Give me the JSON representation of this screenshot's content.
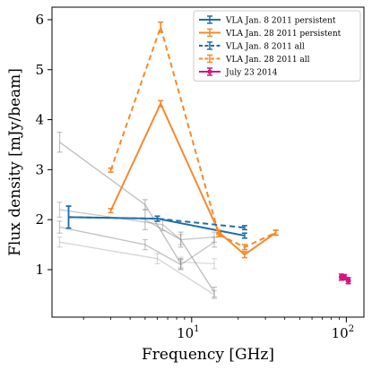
{
  "chart_data": {
    "type": "line",
    "xlabel": "Frequency [GHz]",
    "ylabel": "Flux density [mJy/beam]",
    "xscale": "log",
    "xlim": [
      1.25,
      130
    ],
    "ylim": [
      0.05,
      6.25
    ],
    "x_ticks": [
      {
        "value": 10,
        "base": "10",
        "exp": "1"
      },
      {
        "value": 100,
        "base": "10",
        "exp": "2"
      }
    ],
    "y_ticks": [
      1,
      2,
      3,
      4,
      5,
      6
    ],
    "grid": false,
    "legend": {
      "position": "top-right",
      "entries": [
        {
          "label": "VLA Jan. 8 2011 persistent",
          "color": "#1f6fa8",
          "dash": false
        },
        {
          "label": "VLA Jan. 28 2011 persistent",
          "color": "#f58a2c",
          "dash": false
        },
        {
          "label": "VLA Jan. 8 2011 all",
          "color": "#1f6fa8",
          "dash": true
        },
        {
          "label": "VLA Jan. 28 2011 all",
          "color": "#f58a2c",
          "dash": true
        },
        {
          "label": "July 23 2014",
          "color": "#d4157d",
          "dash": false,
          "marker": true
        }
      ]
    },
    "series": [
      {
        "name": "VLA Jan. 8 2011 persistent",
        "color": "#1f6fa8",
        "dash": false,
        "x": [
          1.6,
          6.0,
          22.0
        ],
        "y": [
          2.05,
          2.02,
          1.68
        ],
        "err": [
          0.22,
          0.05,
          0.05
        ]
      },
      {
        "name": "VLA Jan. 28 2011 persistent",
        "color": "#f58a2c",
        "dash": false,
        "x": [
          3.0,
          6.3,
          15.0,
          22.0,
          35.0
        ],
        "y": [
          2.18,
          4.32,
          1.75,
          1.3,
          1.74
        ],
        "err": [
          0.04,
          0.06,
          0.04,
          0.06,
          0.05
        ]
      },
      {
        "name": "VLA Jan. 8 2011 all",
        "color": "#1f6fa8",
        "dash": true,
        "x": [
          1.6,
          6.0,
          22.0
        ],
        "y": [
          2.05,
          2.02,
          1.84
        ],
        "err": [
          0.22,
          0.05,
          0.04
        ]
      },
      {
        "name": "VLA Jan. 28 2011 all",
        "color": "#f58a2c",
        "dash": true,
        "x": [
          3.0,
          6.3,
          15.0,
          22.0,
          35.0
        ],
        "y": [
          2.99,
          5.85,
          1.7,
          1.45,
          1.74
        ],
        "err": [
          0.04,
          0.1,
          0.04,
          0.05,
          0.05
        ]
      },
      {
        "name": "July 23 2014",
        "color": "#d4157d",
        "dash": false,
        "markers": true,
        "x": [
          93,
          97,
          103
        ],
        "y": [
          0.85,
          0.85,
          0.78
        ],
        "err": [
          0.06,
          0.05,
          0.06
        ]
      }
    ],
    "gray_series": [
      {
        "x": [
          1.4,
          5.0,
          8.5
        ],
        "y": [
          3.55,
          2.3,
          1.12
        ],
        "err": [
          0.2,
          0.1,
          0.1
        ],
        "opacity": 0.55
      },
      {
        "x": [
          1.4,
          6.5,
          8.5,
          14.0
        ],
        "y": [
          2.2,
          1.9,
          1.6,
          1.65
        ],
        "err": [
          0.15,
          0.12,
          0.1,
          0.1
        ],
        "opacity": 0.45
      },
      {
        "x": [
          1.4,
          5.0,
          8.5,
          14.0
        ],
        "y": [
          1.85,
          1.5,
          1.1,
          1.55
        ],
        "err": [
          0.12,
          0.1,
          0.1,
          0.1
        ],
        "opacity": 0.5
      },
      {
        "x": [
          1.4,
          6.0,
          14.0
        ],
        "y": [
          1.55,
          1.22,
          0.5
        ],
        "err": [
          0.1,
          0.1,
          0.08
        ],
        "opacity": 0.35
      },
      {
        "x": [
          5.0,
          8.5,
          14.0
        ],
        "y": [
          2.0,
          1.6,
          0.55
        ],
        "err": [
          0.2,
          0.15,
          0.1
        ],
        "opacity": 0.55
      },
      {
        "x": [
          8.5,
          14.0
        ],
        "y": [
          1.15,
          1.12
        ],
        "err": [
          0.1,
          0.1
        ],
        "opacity": 0.3
      }
    ]
  }
}
